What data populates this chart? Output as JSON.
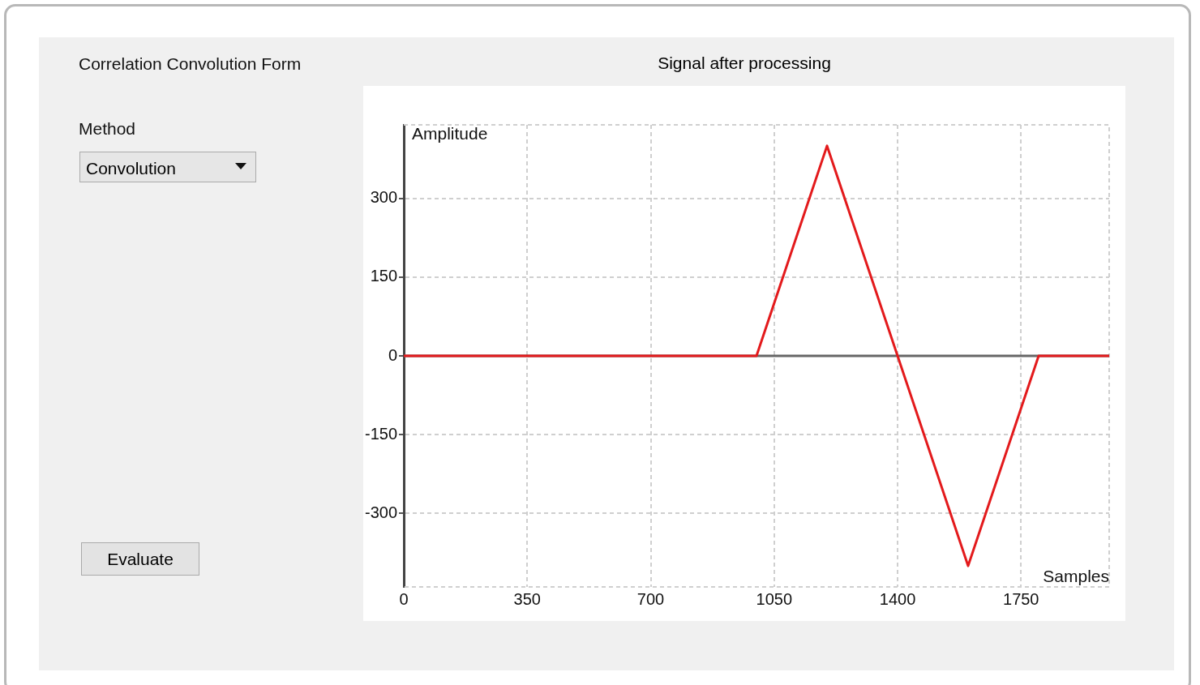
{
  "chart_data": {
    "type": "line",
    "title": "Signal after processing",
    "xlabel": "Samples",
    "ylabel": "Amplitude",
    "x": [
      0,
      1000,
      1200,
      1600,
      1800,
      2000
    ],
    "series": [
      {
        "color": "#e31a1c",
        "values": [
          0,
          0,
          400,
          -400,
          0,
          0
        ]
      }
    ],
    "xlim": [
      0,
      2000
    ],
    "xticks": [
      0,
      350,
      700,
      1050,
      1400,
      1750
    ],
    "ylim": [
      -440,
      440
    ],
    "yticks": [
      -300,
      -150,
      0,
      150,
      300
    ],
    "grid": true,
    "legend": false,
    "marker": "none",
    "line_style": "solid",
    "annotations": [
      "Correlation Convolution Form",
      "Method",
      "Convolution",
      "Evaluate"
    ]
  }
}
